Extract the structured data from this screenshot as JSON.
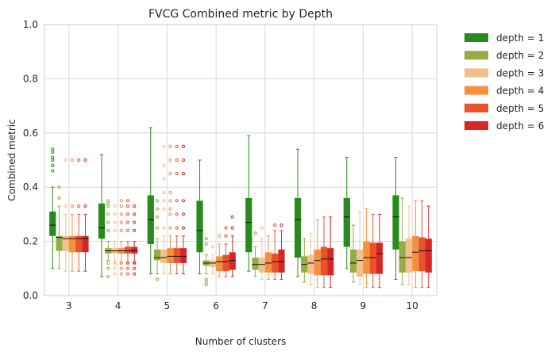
{
  "chart_data": {
    "type": "box",
    "title": "FVCG Combined metric by Depth",
    "xlabel": "Number of clusters",
    "ylabel": "Combined metric",
    "ylim": [
      0,
      1
    ],
    "yticks": [
      0.0,
      0.2,
      0.4,
      0.6,
      0.8,
      1.0
    ],
    "ytick_labels": [
      "0.0",
      "0.2",
      "0.4",
      "0.6",
      "0.8",
      "1.0"
    ],
    "categories": [
      "3",
      "4",
      "5",
      "6",
      "7",
      "8",
      "9",
      "10"
    ],
    "grid": true,
    "legend_position": "outside-top-right",
    "series": [
      {
        "name": "depth = 1",
        "color": "#2a8a1f",
        "boxes": [
          {
            "min": 0.1,
            "q1": 0.22,
            "median": 0.26,
            "q3": 0.31,
            "max": 0.4,
            "outliers": [
              0.46,
              0.48,
              0.5,
              0.51,
              0.53,
              0.54
            ]
          },
          {
            "min": 0.07,
            "q1": 0.21,
            "median": 0.25,
            "q3": 0.34,
            "max": 0.52,
            "outliers": []
          },
          {
            "min": 0.08,
            "q1": 0.19,
            "median": 0.28,
            "q3": 0.37,
            "max": 0.62,
            "outliers": []
          },
          {
            "min": 0.08,
            "q1": 0.16,
            "median": 0.24,
            "q3": 0.35,
            "max": 0.5,
            "outliers": []
          },
          {
            "min": 0.09,
            "q1": 0.16,
            "median": 0.27,
            "q3": 0.36,
            "max": 0.59,
            "outliers": []
          },
          {
            "min": 0.07,
            "q1": 0.14,
            "median": 0.28,
            "q3": 0.36,
            "max": 0.54,
            "outliers": []
          },
          {
            "min": 0.1,
            "q1": 0.18,
            "median": 0.29,
            "q3": 0.36,
            "max": 0.51,
            "outliers": []
          },
          {
            "min": 0.06,
            "q1": 0.17,
            "median": 0.29,
            "q3": 0.37,
            "max": 0.51,
            "outliers": []
          }
        ]
      },
      {
        "name": "depth = 2",
        "color": "#97ab44",
        "boxes": [
          {
            "min": 0.1,
            "q1": 0.165,
            "median": 0.215,
            "q3": 0.22,
            "max": 0.33,
            "outliers": [
              0.36,
              0.4
            ]
          },
          {
            "min": 0.13,
            "q1": 0.155,
            "median": 0.165,
            "q3": 0.175,
            "max": 0.2,
            "outliers": [
              0.07,
              0.1,
              0.12,
              0.24,
              0.27,
              0.3,
              0.33,
              0.34,
              0.35
            ]
          },
          {
            "min": 0.08,
            "q1": 0.13,
            "median": 0.14,
            "q3": 0.17,
            "max": 0.21,
            "outliers": [
              0.06,
              0.25,
              0.29,
              0.32,
              0.35
            ]
          },
          {
            "min": 0.08,
            "q1": 0.11,
            "median": 0.12,
            "q3": 0.13,
            "max": 0.15,
            "outliers": [
              0.04,
              0.05,
              0.06,
              0.19,
              0.21
            ]
          },
          {
            "min": 0.07,
            "q1": 0.095,
            "median": 0.115,
            "q3": 0.14,
            "max": 0.18,
            "outliers": [
              0.23
            ]
          },
          {
            "min": 0.05,
            "q1": 0.085,
            "median": 0.115,
            "q3": 0.145,
            "max": 0.21,
            "outliers": []
          },
          {
            "min": 0.05,
            "q1": 0.085,
            "median": 0.12,
            "q3": 0.17,
            "max": 0.26,
            "outliers": []
          },
          {
            "min": 0.04,
            "q1": 0.085,
            "median": 0.14,
            "q3": 0.2,
            "max": 0.36,
            "outliers": []
          }
        ]
      },
      {
        "name": "depth = 3",
        "color": "#f2c08d",
        "boxes": [
          {
            "min": 0.09,
            "q1": 0.165,
            "median": 0.21,
            "q3": 0.22,
            "max": 0.3,
            "outliers": [
              0.33,
              0.5
            ]
          },
          {
            "min": 0.12,
            "q1": 0.155,
            "median": 0.165,
            "q3": 0.175,
            "max": 0.2,
            "outliers": [
              0.08,
              0.1,
              0.12,
              0.24,
              0.27,
              0.3,
              0.33
            ]
          },
          {
            "min": 0.08,
            "q1": 0.12,
            "median": 0.14,
            "q3": 0.17,
            "max": 0.22,
            "outliers": [
              0.25,
              0.32,
              0.35,
              0.38,
              0.43,
              0.48,
              0.55
            ]
          },
          {
            "min": 0.08,
            "q1": 0.105,
            "median": 0.12,
            "q3": 0.13,
            "max": 0.15,
            "outliers": [
              0.18
            ]
          },
          {
            "min": 0.06,
            "q1": 0.085,
            "median": 0.115,
            "q3": 0.14,
            "max": 0.21,
            "outliers": [
              0.25
            ]
          },
          {
            "min": 0.04,
            "q1": 0.08,
            "median": 0.12,
            "q3": 0.15,
            "max": 0.23,
            "outliers": []
          },
          {
            "min": 0.04,
            "q1": 0.07,
            "median": 0.13,
            "q3": 0.17,
            "max": 0.31,
            "outliers": []
          },
          {
            "min": 0.04,
            "q1": 0.085,
            "median": 0.14,
            "q3": 0.21,
            "max": 0.33,
            "outliers": []
          }
        ]
      },
      {
        "name": "depth = 4",
        "color": "#f3913f",
        "boxes": [
          {
            "min": 0.09,
            "q1": 0.16,
            "median": 0.21,
            "q3": 0.22,
            "max": 0.3,
            "outliers": [
              0.33,
              0.5
            ]
          },
          {
            "min": 0.12,
            "q1": 0.155,
            "median": 0.165,
            "q3": 0.175,
            "max": 0.2,
            "outliers": [
              0.08,
              0.1,
              0.12,
              0.24,
              0.27,
              0.3,
              0.33,
              0.35
            ]
          },
          {
            "min": 0.08,
            "q1": 0.12,
            "median": 0.145,
            "q3": 0.175,
            "max": 0.22,
            "outliers": [
              0.25,
              0.3,
              0.32,
              0.35,
              0.38,
              0.45,
              0.5,
              0.55
            ]
          },
          {
            "min": 0.07,
            "q1": 0.09,
            "median": 0.125,
            "q3": 0.145,
            "max": 0.19,
            "outliers": [
              0.22
            ]
          },
          {
            "min": 0.06,
            "q1": 0.085,
            "median": 0.12,
            "q3": 0.16,
            "max": 0.22,
            "outliers": []
          },
          {
            "min": 0.03,
            "q1": 0.075,
            "median": 0.13,
            "q3": 0.17,
            "max": 0.28,
            "outliers": []
          },
          {
            "min": 0.03,
            "q1": 0.08,
            "median": 0.14,
            "q3": 0.2,
            "max": 0.32,
            "outliers": []
          },
          {
            "min": 0.03,
            "q1": 0.09,
            "median": 0.16,
            "q3": 0.22,
            "max": 0.35,
            "outliers": []
          }
        ]
      },
      {
        "name": "depth = 5",
        "color": "#e8532b",
        "boxes": [
          {
            "min": 0.09,
            "q1": 0.16,
            "median": 0.21,
            "q3": 0.22,
            "max": 0.3,
            "outliers": [
              0.33,
              0.5
            ]
          },
          {
            "min": 0.12,
            "q1": 0.155,
            "median": 0.165,
            "q3": 0.18,
            "max": 0.2,
            "outliers": [
              0.08,
              0.1,
              0.12,
              0.24,
              0.27,
              0.3,
              0.33,
              0.35
            ]
          },
          {
            "min": 0.08,
            "q1": 0.12,
            "median": 0.145,
            "q3": 0.175,
            "max": 0.22,
            "outliers": [
              0.25,
              0.3,
              0.35,
              0.45,
              0.5,
              0.55
            ]
          },
          {
            "min": 0.07,
            "q1": 0.09,
            "median": 0.125,
            "q3": 0.15,
            "max": 0.19,
            "outliers": [
              0.22,
              0.25
            ]
          },
          {
            "min": 0.06,
            "q1": 0.085,
            "median": 0.125,
            "q3": 0.155,
            "max": 0.24,
            "outliers": [
              0.26
            ]
          },
          {
            "min": 0.03,
            "q1": 0.075,
            "median": 0.135,
            "q3": 0.18,
            "max": 0.29,
            "outliers": []
          },
          {
            "min": 0.03,
            "q1": 0.08,
            "median": 0.14,
            "q3": 0.195,
            "max": 0.3,
            "outliers": []
          },
          {
            "min": 0.03,
            "q1": 0.09,
            "median": 0.165,
            "q3": 0.215,
            "max": 0.35,
            "outliers": []
          }
        ]
      },
      {
        "name": "depth = 6",
        "color": "#d62728",
        "boxes": [
          {
            "min": 0.09,
            "q1": 0.16,
            "median": 0.21,
            "q3": 0.22,
            "max": 0.3,
            "outliers": [
              0.33,
              0.5
            ]
          },
          {
            "min": 0.12,
            "q1": 0.155,
            "median": 0.165,
            "q3": 0.18,
            "max": 0.2,
            "outliers": [
              0.08,
              0.1,
              0.12,
              0.24,
              0.27,
              0.3,
              0.33
            ]
          },
          {
            "min": 0.08,
            "q1": 0.12,
            "median": 0.145,
            "q3": 0.175,
            "max": 0.22,
            "outliers": [
              0.25,
              0.3,
              0.35,
              0.45,
              0.5,
              0.55
            ]
          },
          {
            "min": 0.07,
            "q1": 0.095,
            "median": 0.13,
            "q3": 0.16,
            "max": 0.22,
            "outliers": [
              0.25,
              0.29
            ]
          },
          {
            "min": 0.06,
            "q1": 0.085,
            "median": 0.125,
            "q3": 0.17,
            "max": 0.24,
            "outliers": [
              0.26
            ]
          },
          {
            "min": 0.03,
            "q1": 0.075,
            "median": 0.135,
            "q3": 0.175,
            "max": 0.29,
            "outliers": []
          },
          {
            "min": 0.03,
            "q1": 0.08,
            "median": 0.155,
            "q3": 0.195,
            "max": 0.3,
            "outliers": []
          },
          {
            "min": 0.03,
            "q1": 0.085,
            "median": 0.165,
            "q3": 0.21,
            "max": 0.33,
            "outliers": []
          }
        ]
      }
    ]
  }
}
